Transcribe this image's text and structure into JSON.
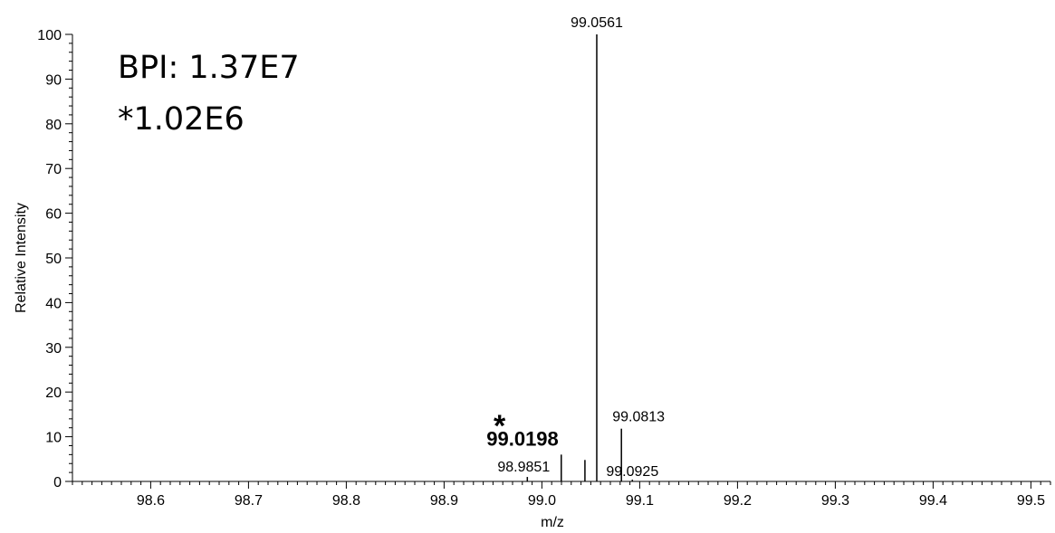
{
  "chart_data": {
    "type": "line",
    "xlabel": "m/z",
    "ylabel": "Relative Intensity",
    "xlim": [
      98.52,
      99.52
    ],
    "ylim": [
      0,
      100
    ],
    "x_ticks": [
      "98.6",
      "98.7",
      "98.8",
      "98.9",
      "99.0",
      "99.1",
      "99.2",
      "99.3",
      "99.4",
      "99.5"
    ],
    "y_ticks": [
      "0",
      "10",
      "20",
      "30",
      "40",
      "50",
      "60",
      "70",
      "80",
      "90",
      "100"
    ],
    "peaks": [
      {
        "mz": 98.9851,
        "intensity": 1.0,
        "label": "98.9851"
      },
      {
        "mz": 99.0198,
        "intensity": 6.0,
        "label": "99.0198",
        "marked": true
      },
      {
        "mz": 99.044,
        "intensity": 4.8,
        "label": ""
      },
      {
        "mz": 99.0561,
        "intensity": 100,
        "label": "99.0561"
      },
      {
        "mz": 99.0813,
        "intensity": 11.8,
        "label": "99.0813"
      },
      {
        "mz": 99.0925,
        "intensity": 0.4,
        "label": "99.0925"
      }
    ],
    "annotations": {
      "bpi": "BPI: 1.37E7",
      "scale": "*1.02E6",
      "star": "*"
    },
    "grid": false
  }
}
